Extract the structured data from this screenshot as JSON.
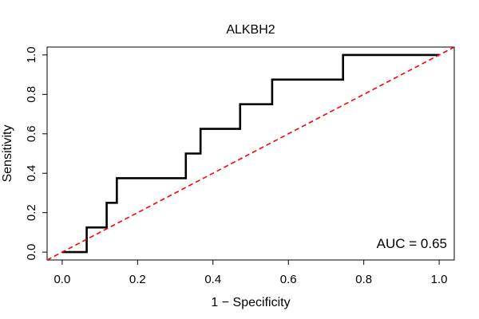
{
  "chart_data": {
    "type": "line",
    "title": "ALKBH2",
    "xlabel": "1 − Specificity",
    "ylabel": "Sensitivity",
    "xlim": [
      -0.04,
      1.04
    ],
    "ylim": [
      -0.04,
      1.04
    ],
    "xticks": [
      0.0,
      0.2,
      0.4,
      0.6,
      0.8,
      1.0
    ],
    "xtick_labels": [
      "0.0",
      "0.2",
      "0.4",
      "0.6",
      "0.8",
      "1.0"
    ],
    "yticks": [
      0.0,
      0.2,
      0.4,
      0.6,
      0.8,
      1.0
    ],
    "ytick_labels": [
      "0.0",
      "0.2",
      "0.4",
      "0.6",
      "0.8",
      "1.0"
    ],
    "grid": false,
    "annotation": "AUC = 0.65",
    "series": [
      {
        "kind": "step",
        "color": "#000000",
        "x": [
          0.0,
          0.065,
          0.065,
          0.118,
          0.118,
          0.145,
          0.145,
          0.328,
          0.328,
          0.367,
          0.367,
          0.472,
          0.472,
          0.557,
          0.557,
          0.745,
          0.745,
          1.0
        ],
        "y": [
          0.0,
          0.0,
          0.125,
          0.125,
          0.25,
          0.25,
          0.375,
          0.375,
          0.5,
          0.5,
          0.625,
          0.625,
          0.75,
          0.75,
          0.875,
          0.875,
          1.0,
          1.0
        ]
      },
      {
        "kind": "reference",
        "color": "#ff0000",
        "dashed": true,
        "x": [
          -0.04,
          1.04
        ],
        "y": [
          -0.04,
          1.04
        ]
      }
    ]
  }
}
